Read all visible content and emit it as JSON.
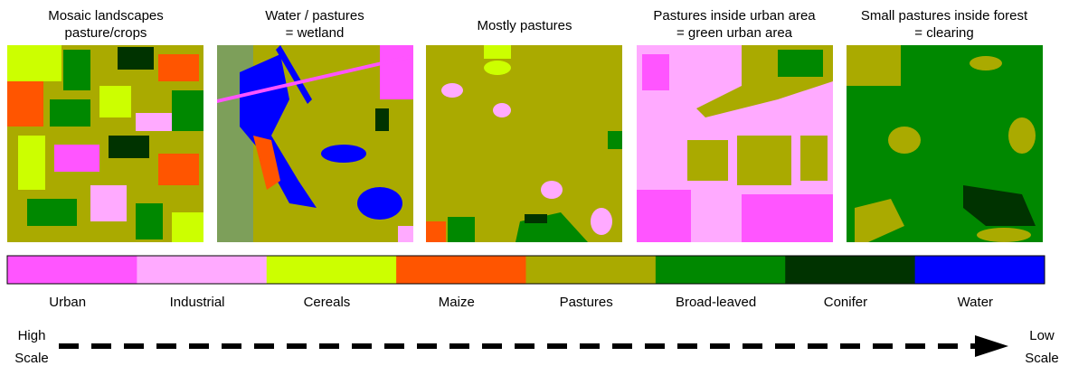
{
  "panels": [
    {
      "caption": [
        "Mosaic landscapes",
        "pasture/crops"
      ]
    },
    {
      "caption": [
        "Water / pastures",
        "= wetland"
      ]
    },
    {
      "caption": [
        "Mostly pastures"
      ]
    },
    {
      "caption": [
        "Pastures inside urban area",
        "= green urban area"
      ]
    },
    {
      "caption": [
        "Small pastures inside forest",
        "= clearing"
      ]
    }
  ],
  "legend": [
    {
      "name": "Urban",
      "color": "#ff55ff"
    },
    {
      "name": "Industrial",
      "color": "#ffaaff"
    },
    {
      "name": "Cereals",
      "color": "#ccff00"
    },
    {
      "name": "Maize",
      "color": "#ff5500"
    },
    {
      "name": "Pastures",
      "color": "#aaaa00"
    },
    {
      "name": "Broad-leaved",
      "color": "#008800"
    },
    {
      "name": "Conifer",
      "color": "#003300"
    },
    {
      "name": "Water",
      "color": "#0000ff"
    }
  ],
  "arrow": {
    "start": [
      "High",
      "Scale"
    ],
    "end": [
      "Low",
      "Scale"
    ]
  }
}
